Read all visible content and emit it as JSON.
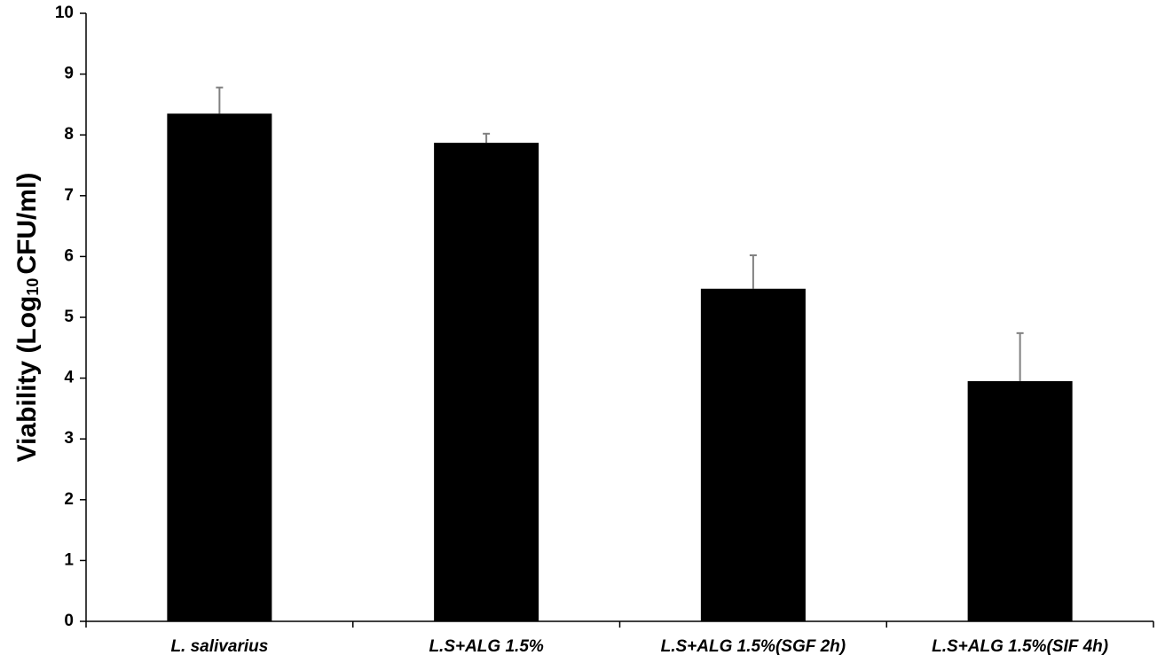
{
  "chart_data": {
    "type": "bar",
    "ylabel": {
      "text": "Viability (Log",
      "sub": "10",
      "tail": "CFU/ml)"
    },
    "categories": [
      "L. salivarius",
      "L.S+ALG 1.5%",
      "L.S+ALG 1.5%(SGF 2h)",
      "L.S+ALG 1.5%(SIF 4h)"
    ],
    "values": [
      8.35,
      7.87,
      5.47,
      3.95
    ],
    "errors": [
      0.43,
      0.15,
      0.55,
      0.79
    ],
    "color": "#000000",
    "error_color": "#808080",
    "ylim": [
      0,
      10
    ],
    "yticks": [
      0,
      1,
      2,
      3,
      4,
      5,
      6,
      7,
      8,
      9,
      10
    ],
    "grid": false
  }
}
